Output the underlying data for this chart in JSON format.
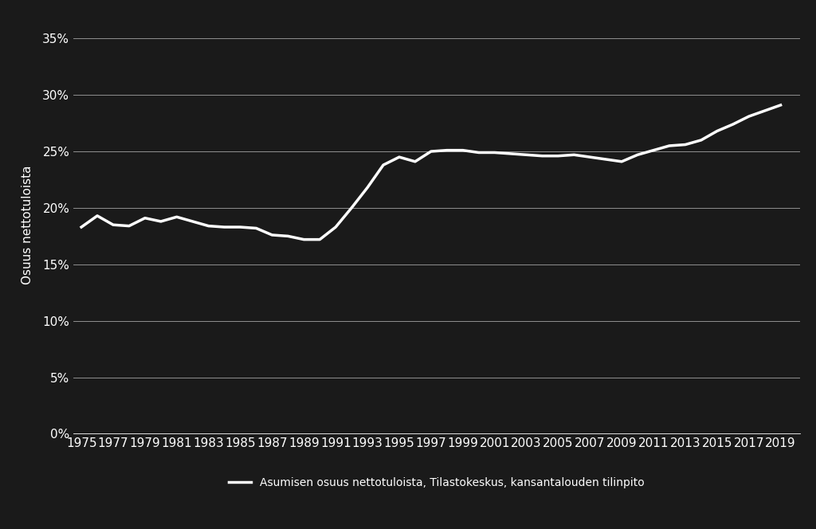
{
  "years": [
    1975,
    1976,
    1977,
    1978,
    1979,
    1980,
    1981,
    1982,
    1983,
    1984,
    1985,
    1986,
    1987,
    1988,
    1989,
    1990,
    1991,
    1992,
    1993,
    1994,
    1995,
    1996,
    1997,
    1998,
    1999,
    2000,
    2001,
    2002,
    2003,
    2004,
    2005,
    2006,
    2007,
    2008,
    2009,
    2010,
    2011,
    2012,
    2013,
    2014,
    2015,
    2016,
    2017,
    2018,
    2019
  ],
  "values": [
    0.183,
    0.193,
    0.185,
    0.184,
    0.191,
    0.188,
    0.192,
    0.188,
    0.184,
    0.183,
    0.183,
    0.182,
    0.176,
    0.175,
    0.172,
    0.172,
    0.183,
    0.2,
    0.218,
    0.238,
    0.245,
    0.241,
    0.25,
    0.251,
    0.251,
    0.249,
    0.249,
    0.248,
    0.247,
    0.246,
    0.246,
    0.247,
    0.245,
    0.243,
    0.241,
    0.247,
    0.251,
    0.255,
    0.256,
    0.26,
    0.268,
    0.274,
    0.281,
    0.286,
    0.291
  ],
  "background_color": "#1a1a1a",
  "line_color": "#ffffff",
  "grid_color": "#ffffff",
  "text_color": "#ffffff",
  "ylabel": "Osuus nettotuloista",
  "legend_label": "Asumisen osuus nettotuloista, Tilastokeskus, kansantalouden tilinpito",
  "yticks": [
    0.0,
    0.05,
    0.1,
    0.15,
    0.2,
    0.25,
    0.3,
    0.35
  ],
  "ytick_labels": [
    "0%",
    "5%",
    "10%",
    "15%",
    "20%",
    "25%",
    "30%",
    "35%"
  ],
  "xtick_years": [
    1975,
    1977,
    1979,
    1981,
    1983,
    1985,
    1987,
    1989,
    1991,
    1993,
    1995,
    1997,
    1999,
    2001,
    2003,
    2005,
    2007,
    2009,
    2011,
    2013,
    2015,
    2017,
    2019
  ],
  "line_width": 2.5,
  "font_size": 11,
  "legend_font_size": 10,
  "ylim": [
    0.0,
    0.37
  ],
  "xlim": [
    1974.5,
    2020.2
  ]
}
